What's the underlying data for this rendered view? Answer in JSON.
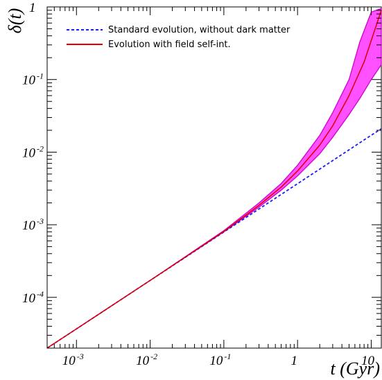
{
  "chart_data": {
    "type": "line",
    "title": "",
    "xlabel": "t (Gyr)",
    "ylabel": "δ(t)",
    "xscale": "log",
    "yscale": "log",
    "xlim": [
      0.0004,
      13.7
    ],
    "ylim": [
      2e-05,
      1.0
    ],
    "grid": false,
    "legend_position": "top-left",
    "x_ticks": [
      {
        "value": 0.001,
        "base": "10",
        "exp": "-3"
      },
      {
        "value": 0.01,
        "base": "10",
        "exp": "-2"
      },
      {
        "value": 0.1,
        "base": "10",
        "exp": "-1"
      },
      {
        "value": 1,
        "base": "1",
        "exp": ""
      },
      {
        "value": 10,
        "base": "10",
        "exp": ""
      }
    ],
    "y_ticks": [
      {
        "value": 0.0001,
        "base": "10",
        "exp": "-4"
      },
      {
        "value": 0.001,
        "base": "10",
        "exp": "-3"
      },
      {
        "value": 0.01,
        "base": "10",
        "exp": "-2"
      },
      {
        "value": 0.1,
        "base": "10",
        "exp": "-1"
      },
      {
        "value": 1,
        "base": "1",
        "exp": ""
      }
    ],
    "series": [
      {
        "name": "Standard evolution, without dark matter",
        "color": "#1a1aff",
        "style": "dashed",
        "x": [
          0.0004,
          0.001,
          0.01,
          0.1,
          1,
          10,
          13.7
        ],
        "y": [
          2e-05,
          3.68e-05,
          0.000171,
          0.000794,
          0.00368,
          0.0171,
          0.021
        ]
      },
      {
        "name": "Evolution with field self-int.",
        "color": "#e00000",
        "style": "solid",
        "x": [
          0.0004,
          0.001,
          0.01,
          0.1,
          0.3,
          0.6,
          1,
          2,
          3,
          5,
          8,
          13.7
        ],
        "y": [
          2e-05,
          3.68e-05,
          0.000171,
          0.00081,
          0.00185,
          0.0033,
          0.0055,
          0.0125,
          0.023,
          0.06,
          0.175,
          0.9
        ]
      }
    ],
    "band": {
      "color": "#ff33ff",
      "edge_color": "#cc00cc",
      "x": [
        0.0004,
        0.001,
        0.01,
        0.1,
        0.3,
        0.6,
        1,
        2,
        3,
        5,
        7,
        10,
        13.7
      ],
      "lower": [
        2e-05,
        3.68e-05,
        0.000171,
        0.0008,
        0.00175,
        0.003,
        0.0047,
        0.0095,
        0.016,
        0.033,
        0.055,
        0.1,
        0.16
      ],
      "upper": [
        2e-05,
        3.68e-05,
        0.000171,
        0.00083,
        0.002,
        0.0037,
        0.0066,
        0.017,
        0.035,
        0.1,
        0.33,
        0.85,
        0.95
      ]
    }
  }
}
